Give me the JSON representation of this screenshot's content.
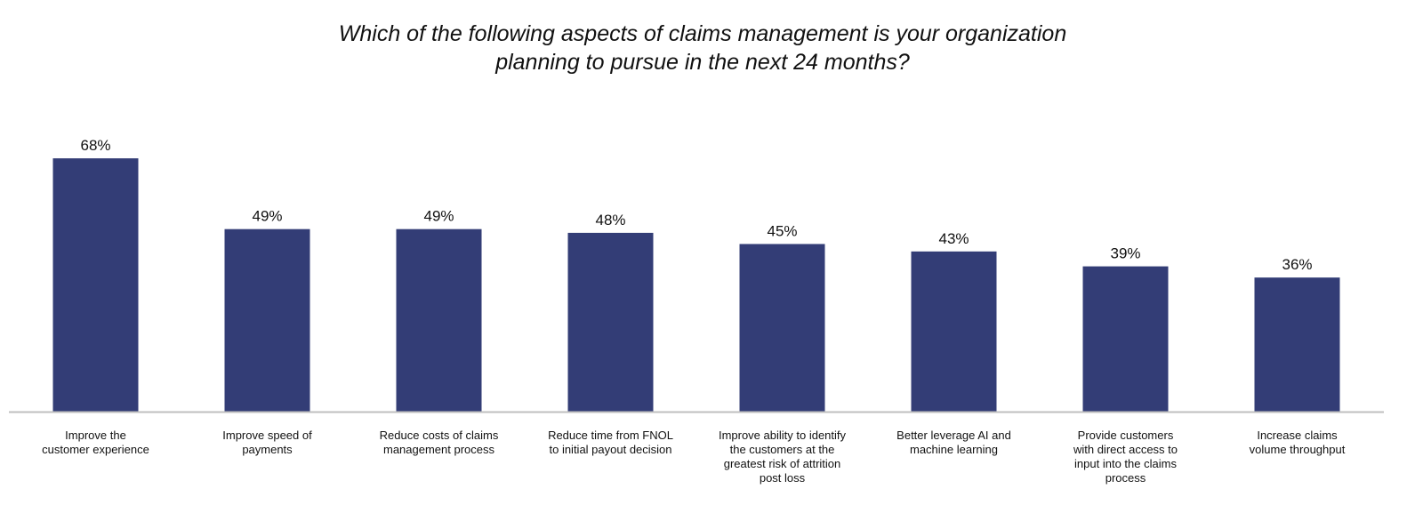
{
  "chart_data": {
    "type": "bar",
    "title_lines": [
      "Which of the following aspects of claims management is your organization",
      "planning to pursue in the next 24 months?"
    ],
    "categories": [
      [
        "Improve the",
        "customer experience"
      ],
      [
        "Improve speed of",
        "payments"
      ],
      [
        "Reduce costs of claims",
        "management process"
      ],
      [
        "Reduce time from FNOL",
        "to initial payout decision"
      ],
      [
        "Improve ability to identify",
        "the customers at the",
        "greatest risk of attrition",
        "post loss"
      ],
      [
        "Better leverage AI and",
        "machine learning"
      ],
      [
        "Provide customers",
        "with direct access to",
        "input into the claims",
        "process"
      ],
      [
        "Increase claims",
        "volume throughput"
      ]
    ],
    "values": [
      68,
      49,
      49,
      48,
      45,
      43,
      39,
      36
    ],
    "value_labels": [
      "68%",
      "49%",
      "49%",
      "48%",
      "45%",
      "43%",
      "39%",
      "36%"
    ],
    "xlabel": "",
    "ylabel": "",
    "ylim": [
      0,
      100
    ],
    "grid": false,
    "legend": "none",
    "colors": {
      "bar": "#333d76",
      "axis": "#bfbfbf"
    }
  }
}
